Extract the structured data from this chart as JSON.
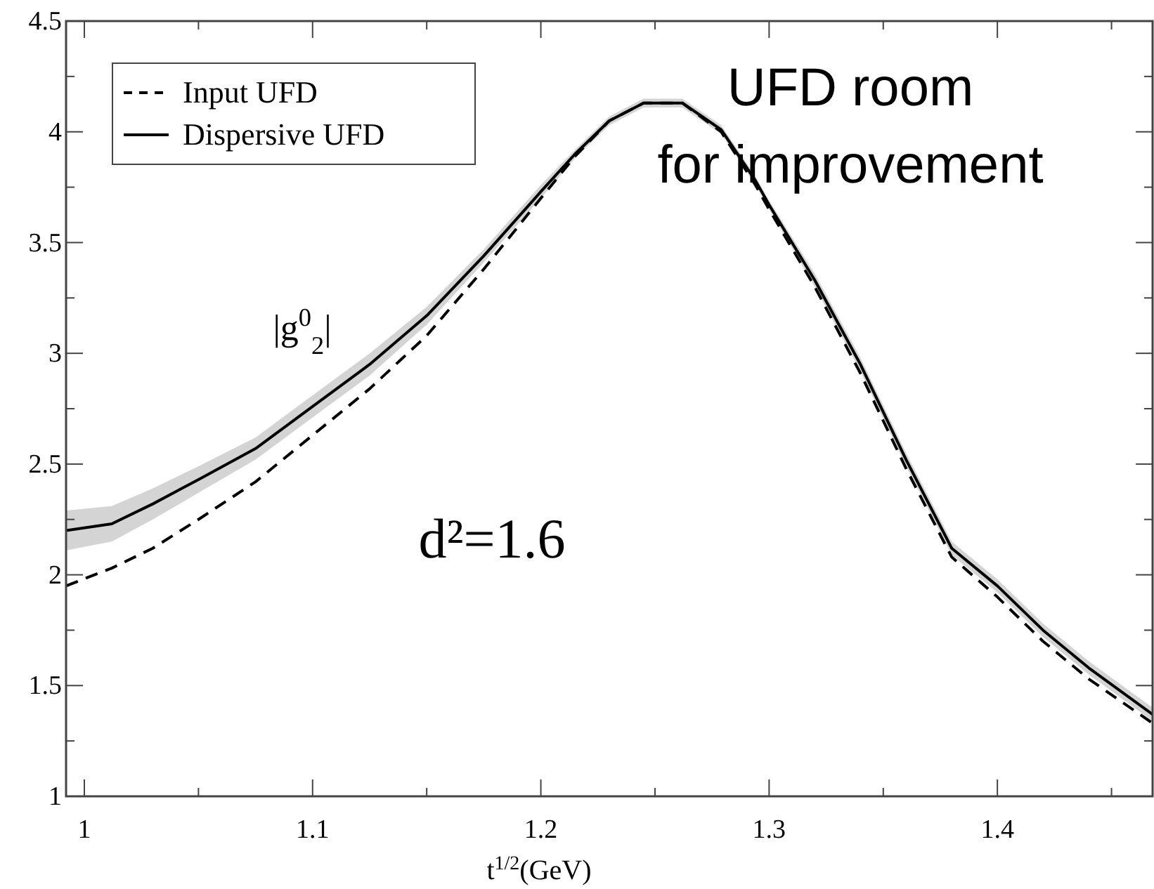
{
  "chart_data": {
    "type": "line",
    "xlabel": "t$^{1/2}$(GeV)",
    "xlim": [
      0.992,
      1.468
    ],
    "ylim": [
      1,
      4.5
    ],
    "xticks": [
      1,
      {
        "value": 1.05,
        "label": null
      },
      1.1,
      {
        "value": 1.15,
        "label": null
      },
      1.2,
      {
        "value": 1.25,
        "label": null
      },
      1.3,
      {
        "value": 1.35,
        "label": null
      },
      1.4,
      {
        "value": 1.45,
        "label": null
      }
    ],
    "yticks": [
      1,
      {
        "value": 1.25,
        "label": null
      },
      1.5,
      {
        "value": 1.75,
        "label": null
      },
      2,
      {
        "value": 2.25,
        "label": null
      },
      2.5,
      {
        "value": 2.75,
        "label": null
      },
      3,
      {
        "value": 3.25,
        "label": null
      },
      3.5,
      {
        "value": 3.75,
        "label": null
      },
      4,
      {
        "value": 4.25,
        "label": null
      },
      4.5
    ],
    "legend": "top left",
    "grid": false,
    "annotations": [
      "|g$^{0}$$_{2}$|",
      "d²=1.6",
      "UFD room\nfor improvement"
    ],
    "series": [
      {
        "name": "Input UFD",
        "color": "#000000",
        "line_style": "dashed",
        "x": [
          0.992,
          1.012,
          1.03,
          1.05,
          1.075,
          1.1,
          1.125,
          1.15,
          1.175,
          1.2,
          1.215,
          1.23,
          1.245,
          1.262,
          1.279,
          1.294,
          1.3,
          1.32,
          1.34,
          1.36,
          1.38,
          1.4,
          1.42,
          1.44,
          1.468
        ],
        "values": [
          1.95,
          2.03,
          2.12,
          2.25,
          2.42,
          2.63,
          2.84,
          3.08,
          3.38,
          3.7,
          3.89,
          4.05,
          4.13,
          4.13,
          4.0,
          3.76,
          3.65,
          3.3,
          2.91,
          2.48,
          2.08,
          1.9,
          1.7,
          1.53,
          1.33
        ]
      },
      {
        "name": "Dispersive UFD",
        "color": "#000000",
        "line_style": "solid",
        "x": [
          0.992,
          1.012,
          1.03,
          1.05,
          1.075,
          1.1,
          1.125,
          1.15,
          1.175,
          1.2,
          1.215,
          1.23,
          1.245,
          1.262,
          1.279,
          1.294,
          1.3,
          1.32,
          1.34,
          1.36,
          1.38,
          1.4,
          1.42,
          1.44,
          1.468
        ],
        "values": [
          2.2,
          2.23,
          2.32,
          2.43,
          2.57,
          2.76,
          2.95,
          3.17,
          3.44,
          3.73,
          3.9,
          4.05,
          4.13,
          4.13,
          4.01,
          3.78,
          3.67,
          3.33,
          2.95,
          2.52,
          2.12,
          1.95,
          1.75,
          1.58,
          1.37
        ],
        "lower": [
          2.11,
          2.15,
          2.25,
          2.37,
          2.52,
          2.71,
          2.9,
          3.13,
          3.41,
          3.7,
          3.88,
          4.03,
          4.11,
          4.11,
          3.99,
          3.76,
          3.65,
          3.3,
          2.92,
          2.49,
          2.09,
          1.92,
          1.72,
          1.55,
          1.34
        ],
        "upper": [
          2.29,
          2.31,
          2.39,
          2.49,
          2.62,
          2.81,
          3.0,
          3.21,
          3.47,
          3.76,
          3.92,
          4.07,
          4.15,
          4.15,
          4.03,
          3.8,
          3.69,
          3.36,
          2.98,
          2.55,
          2.15,
          1.98,
          1.78,
          1.61,
          1.4
        ]
      }
    ]
  }
}
